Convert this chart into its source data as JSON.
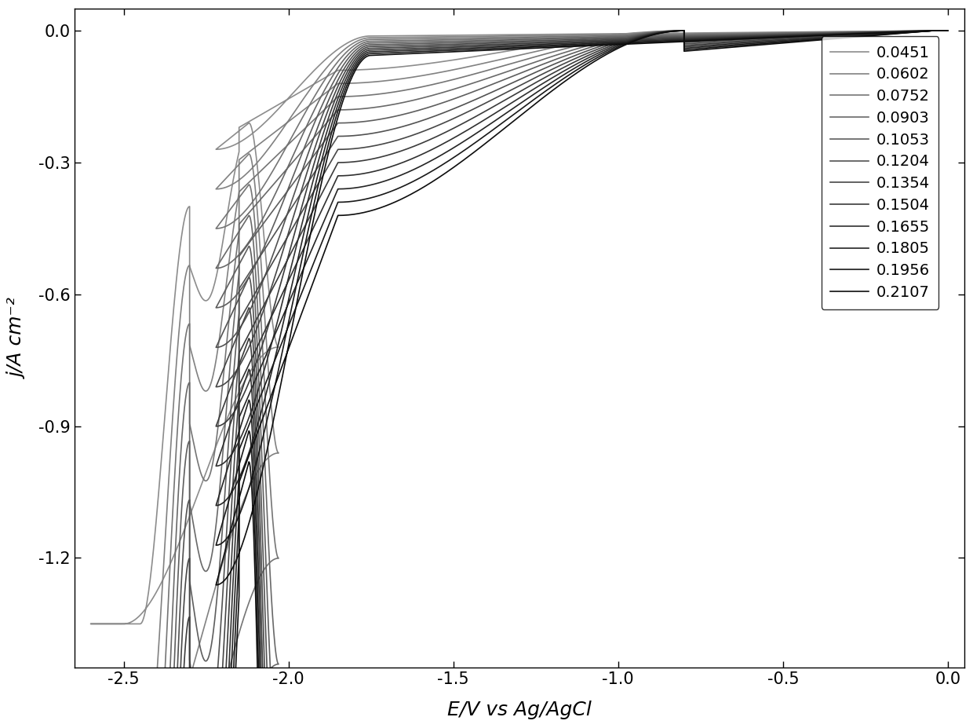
{
  "legend_labels": [
    "0.0451",
    "0.0602",
    "0.0752",
    "0.0903",
    "0.1053",
    "0.1204",
    "0.1354",
    "0.1504",
    "0.1655",
    "0.1805",
    "0.1956",
    "0.2107"
  ],
  "xlim": [
    -2.65,
    0.05
  ],
  "ylim": [
    -1.45,
    0.05
  ],
  "xlabel": "E/V vs Ag/AgCl",
  "ylabel": "j/A cm⁻²",
  "xticks": [
    -2.5,
    -2.0,
    -1.5,
    -1.0,
    -0.5,
    0.0
  ],
  "yticks": [
    0.0,
    -0.3,
    -0.6,
    -0.9,
    -1.2
  ],
  "background_color": "#ffffff",
  "legend_fontsize": 14,
  "axis_fontsize": 18,
  "tick_fontsize": 15
}
